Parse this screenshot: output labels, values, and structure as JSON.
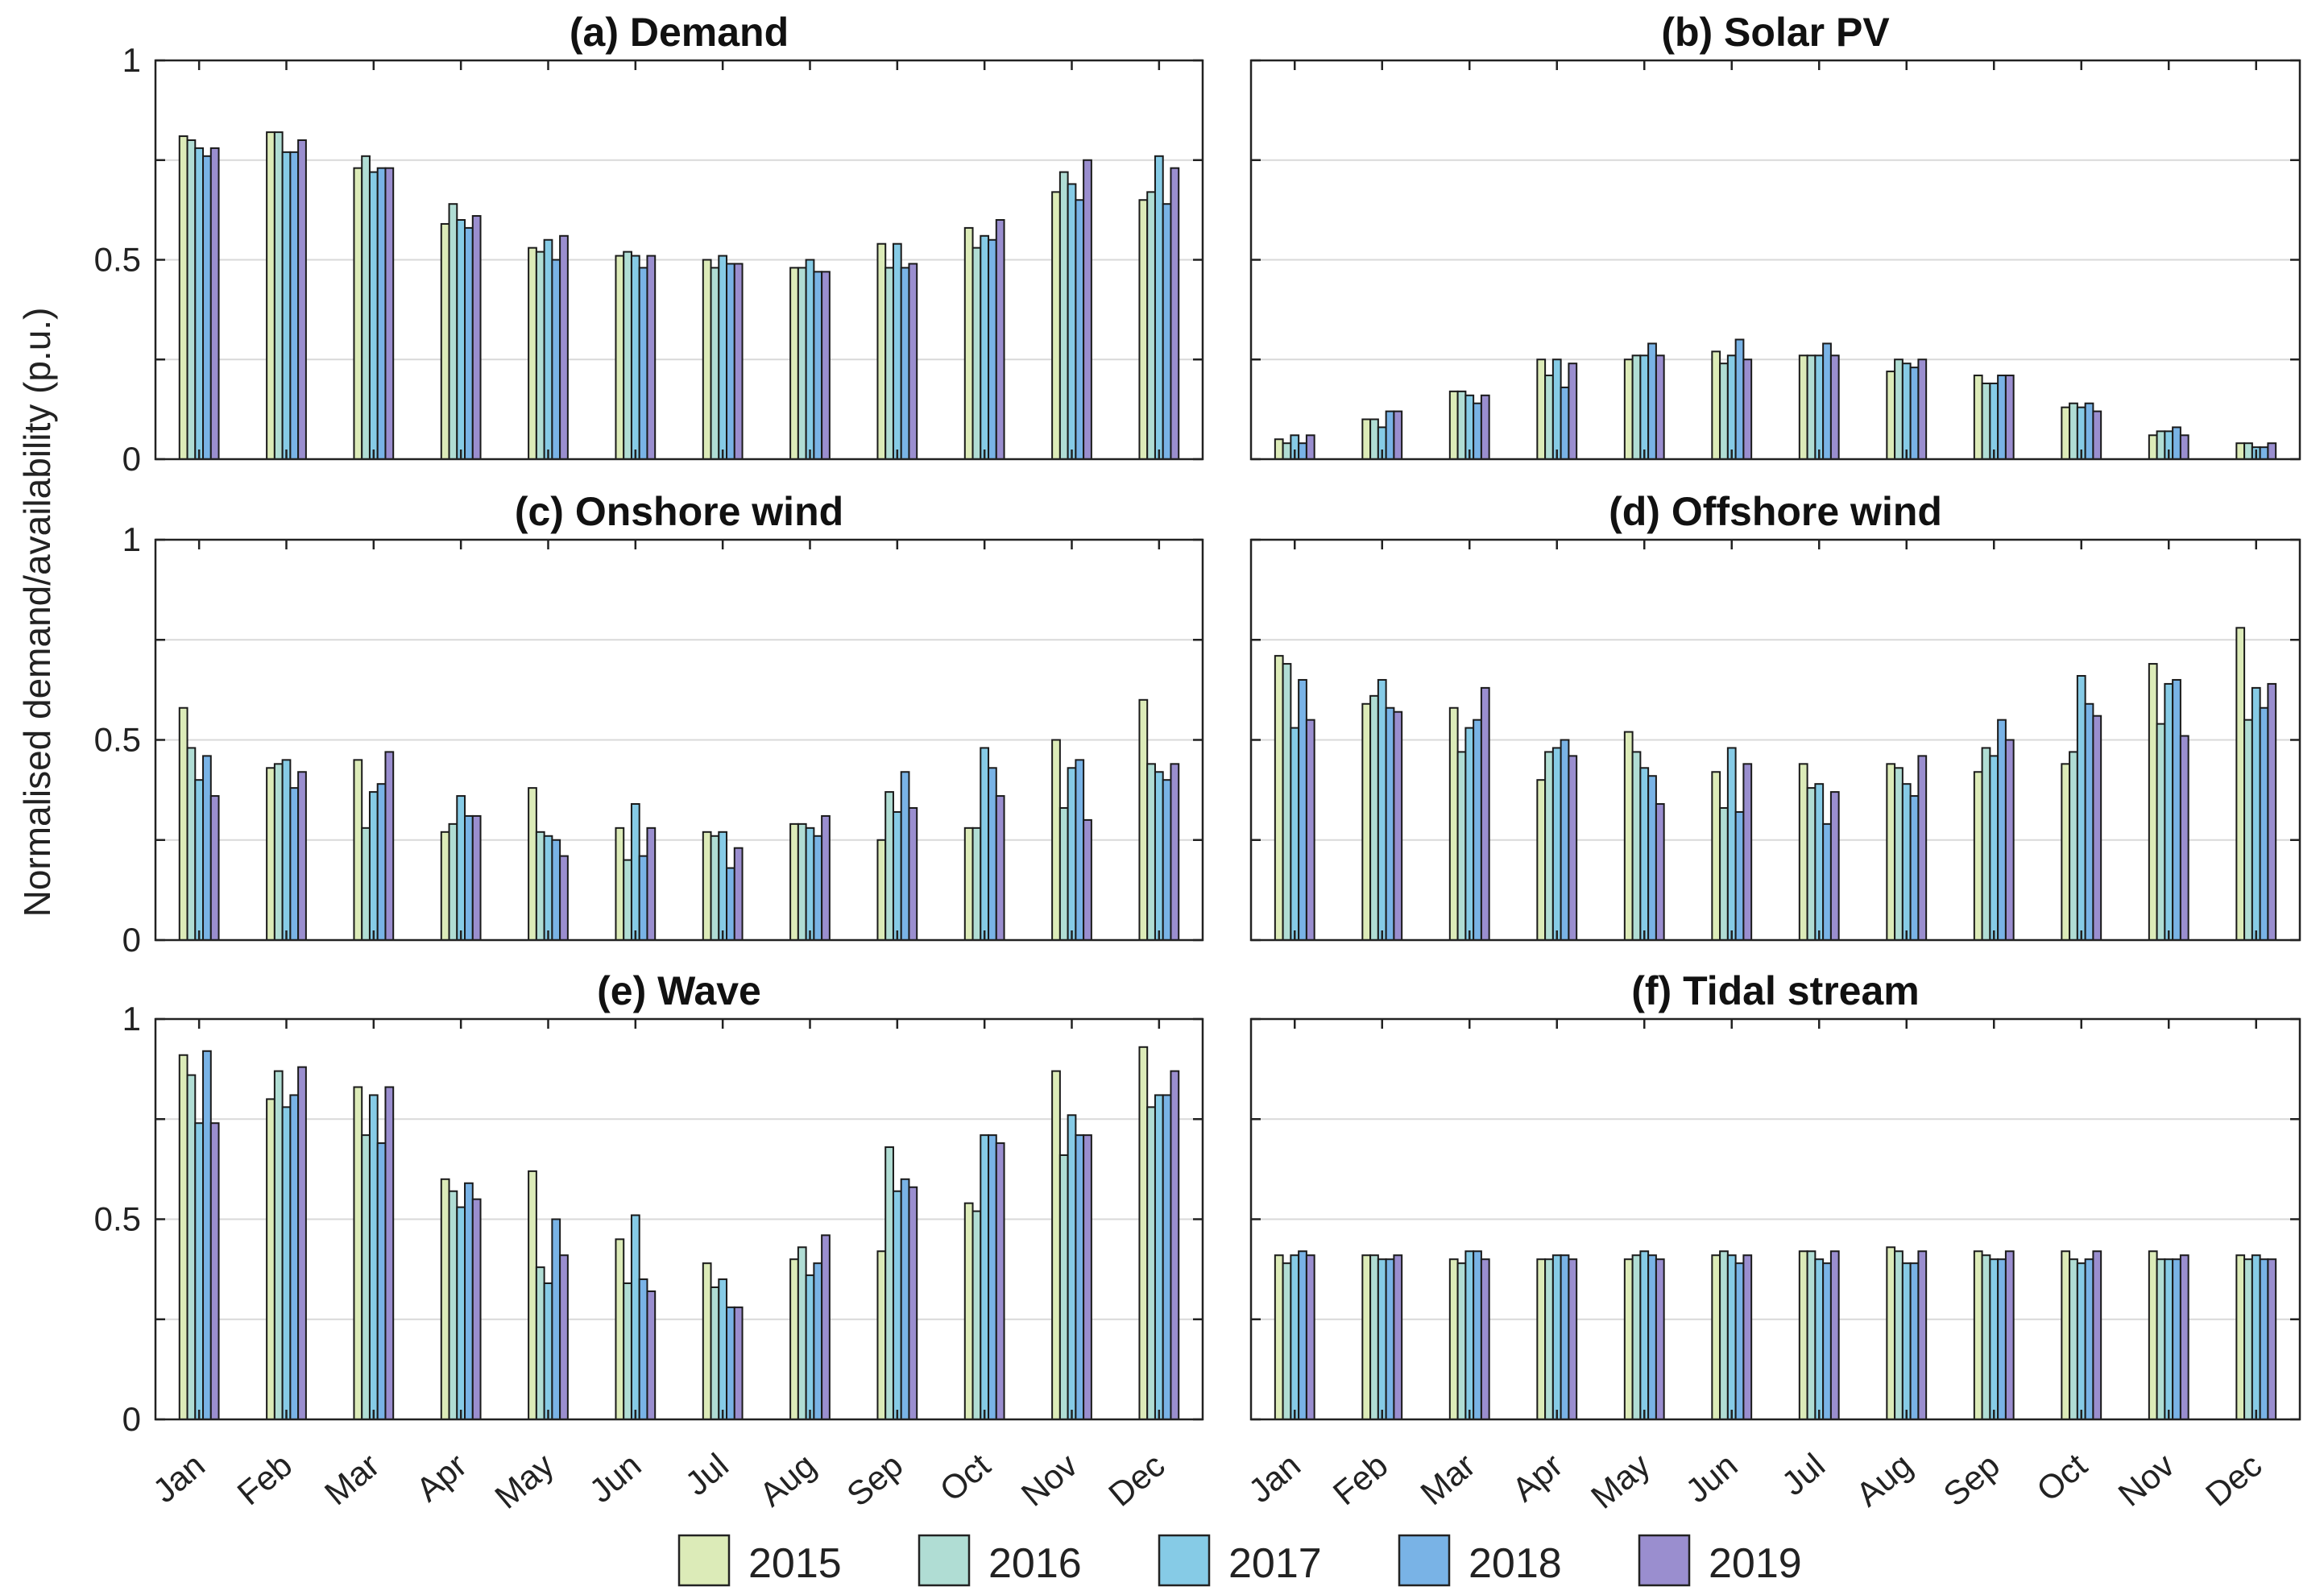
{
  "figure": {
    "ylabel": "Normalised demand/availability (p.u.)"
  },
  "colors": {
    "2015": "#dcebb8",
    "2016": "#b0ddd4",
    "2017": "#86cbe6",
    "2018": "#79b3e6",
    "2019": "#9a8ecf",
    "bar_edge": "#1a1a1a",
    "grid": "#d9d9d9"
  },
  "chart_data": [
    {
      "id": "a",
      "type": "bar",
      "title": "(a) Demand",
      "ylim": [
        0,
        1
      ],
      "yticks": [
        "0",
        "0.5",
        "1"
      ],
      "categories": [
        "Jan",
        "Feb",
        "Mar",
        "Apr",
        "May",
        "Jun",
        "Jul",
        "Aug",
        "Sep",
        "Oct",
        "Nov",
        "Dec"
      ],
      "series": [
        {
          "name": "2015",
          "values": [
            0.81,
            0.82,
            0.73,
            0.59,
            0.53,
            0.51,
            0.5,
            0.48,
            0.54,
            0.58,
            0.67,
            0.65
          ]
        },
        {
          "name": "2016",
          "values": [
            0.8,
            0.82,
            0.76,
            0.64,
            0.52,
            0.52,
            0.48,
            0.48,
            0.48,
            0.53,
            0.72,
            0.67
          ]
        },
        {
          "name": "2017",
          "values": [
            0.78,
            0.77,
            0.72,
            0.6,
            0.55,
            0.51,
            0.51,
            0.5,
            0.54,
            0.56,
            0.69,
            0.76
          ]
        },
        {
          "name": "2018",
          "values": [
            0.76,
            0.77,
            0.73,
            0.58,
            0.5,
            0.48,
            0.49,
            0.47,
            0.48,
            0.55,
            0.65,
            0.64
          ]
        },
        {
          "name": "2019",
          "values": [
            0.78,
            0.8,
            0.73,
            0.61,
            0.56,
            0.51,
            0.49,
            0.47,
            0.49,
            0.6,
            0.75,
            0.73
          ]
        }
      ]
    },
    {
      "id": "b",
      "type": "bar",
      "title": "(b) Solar PV",
      "ylim": [
        0,
        1
      ],
      "yticks": [
        "",
        "",
        ""
      ],
      "categories": [
        "Jan",
        "Feb",
        "Mar",
        "Apr",
        "May",
        "Jun",
        "Jul",
        "Aug",
        "Sep",
        "Oct",
        "Nov",
        "Dec"
      ],
      "series": [
        {
          "name": "2015",
          "values": [
            0.05,
            0.1,
            0.17,
            0.25,
            0.25,
            0.27,
            0.26,
            0.22,
            0.21,
            0.13,
            0.06,
            0.04
          ]
        },
        {
          "name": "2016",
          "values": [
            0.04,
            0.1,
            0.17,
            0.21,
            0.26,
            0.24,
            0.26,
            0.25,
            0.19,
            0.14,
            0.07,
            0.04
          ]
        },
        {
          "name": "2017",
          "values": [
            0.06,
            0.08,
            0.16,
            0.25,
            0.26,
            0.26,
            0.26,
            0.24,
            0.19,
            0.13,
            0.07,
            0.03
          ]
        },
        {
          "name": "2018",
          "values": [
            0.04,
            0.12,
            0.14,
            0.18,
            0.29,
            0.3,
            0.29,
            0.23,
            0.21,
            0.14,
            0.08,
            0.03
          ]
        },
        {
          "name": "2019",
          "values": [
            0.06,
            0.12,
            0.16,
            0.24,
            0.26,
            0.25,
            0.26,
            0.25,
            0.21,
            0.12,
            0.06,
            0.04
          ]
        }
      ]
    },
    {
      "id": "c",
      "type": "bar",
      "title": "(c) Onshore wind",
      "ylim": [
        0,
        1
      ],
      "yticks": [
        "0",
        "0.5",
        "1"
      ],
      "categories": [
        "Jan",
        "Feb",
        "Mar",
        "Apr",
        "May",
        "Jun",
        "Jul",
        "Aug",
        "Sep",
        "Oct",
        "Nov",
        "Dec"
      ],
      "series": [
        {
          "name": "2015",
          "values": [
            0.58,
            0.43,
            0.45,
            0.27,
            0.38,
            0.28,
            0.27,
            0.29,
            0.25,
            0.28,
            0.5,
            0.6
          ]
        },
        {
          "name": "2016",
          "values": [
            0.48,
            0.44,
            0.28,
            0.29,
            0.27,
            0.2,
            0.26,
            0.29,
            0.37,
            0.28,
            0.33,
            0.44
          ]
        },
        {
          "name": "2017",
          "values": [
            0.4,
            0.45,
            0.37,
            0.36,
            0.26,
            0.34,
            0.27,
            0.28,
            0.32,
            0.48,
            0.43,
            0.42
          ]
        },
        {
          "name": "2018",
          "values": [
            0.46,
            0.38,
            0.39,
            0.31,
            0.25,
            0.21,
            0.18,
            0.26,
            0.42,
            0.43,
            0.45,
            0.4
          ]
        },
        {
          "name": "2019",
          "values": [
            0.36,
            0.42,
            0.47,
            0.31,
            0.21,
            0.28,
            0.23,
            0.31,
            0.33,
            0.36,
            0.3,
            0.44
          ]
        }
      ]
    },
    {
      "id": "d",
      "type": "bar",
      "title": "(d) Offshore wind",
      "ylim": [
        0,
        1
      ],
      "yticks": [
        "",
        "",
        ""
      ],
      "categories": [
        "Jan",
        "Feb",
        "Mar",
        "Apr",
        "May",
        "Jun",
        "Jul",
        "Aug",
        "Sep",
        "Oct",
        "Nov",
        "Dec"
      ],
      "series": [
        {
          "name": "2015",
          "values": [
            0.71,
            0.59,
            0.58,
            0.4,
            0.52,
            0.42,
            0.44,
            0.44,
            0.42,
            0.44,
            0.69,
            0.78
          ]
        },
        {
          "name": "2016",
          "values": [
            0.69,
            0.61,
            0.47,
            0.47,
            0.47,
            0.33,
            0.38,
            0.43,
            0.48,
            0.47,
            0.54,
            0.55
          ]
        },
        {
          "name": "2017",
          "values": [
            0.53,
            0.65,
            0.53,
            0.48,
            0.43,
            0.48,
            0.39,
            0.39,
            0.46,
            0.66,
            0.64,
            0.63
          ]
        },
        {
          "name": "2018",
          "values": [
            0.65,
            0.58,
            0.55,
            0.5,
            0.41,
            0.32,
            0.29,
            0.36,
            0.55,
            0.59,
            0.65,
            0.58
          ]
        },
        {
          "name": "2019",
          "values": [
            0.55,
            0.57,
            0.63,
            0.46,
            0.34,
            0.44,
            0.37,
            0.46,
            0.5,
            0.56,
            0.51,
            0.64
          ]
        }
      ]
    },
    {
      "id": "e",
      "type": "bar",
      "title": "(e) Wave",
      "ylim": [
        0,
        1
      ],
      "yticks": [
        "0",
        "0.5",
        "1"
      ],
      "categories": [
        "Jan",
        "Feb",
        "Mar",
        "Apr",
        "May",
        "Jun",
        "Jul",
        "Aug",
        "Sep",
        "Oct",
        "Nov",
        "Dec"
      ],
      "series": [
        {
          "name": "2015",
          "values": [
            0.91,
            0.8,
            0.83,
            0.6,
            0.62,
            0.45,
            0.39,
            0.4,
            0.42,
            0.54,
            0.87,
            0.93
          ]
        },
        {
          "name": "2016",
          "values": [
            0.86,
            0.87,
            0.71,
            0.57,
            0.38,
            0.34,
            0.33,
            0.43,
            0.68,
            0.52,
            0.66,
            0.78
          ]
        },
        {
          "name": "2017",
          "values": [
            0.74,
            0.78,
            0.81,
            0.53,
            0.34,
            0.51,
            0.35,
            0.36,
            0.57,
            0.71,
            0.76,
            0.81
          ]
        },
        {
          "name": "2018",
          "values": [
            0.92,
            0.81,
            0.69,
            0.59,
            0.5,
            0.35,
            0.28,
            0.39,
            0.6,
            0.71,
            0.71,
            0.81
          ]
        },
        {
          "name": "2019",
          "values": [
            0.74,
            0.88,
            0.83,
            0.55,
            0.41,
            0.32,
            0.28,
            0.46,
            0.58,
            0.69,
            0.71,
            0.87
          ]
        }
      ]
    },
    {
      "id": "f",
      "type": "bar",
      "title": "(f) Tidal stream",
      "ylim": [
        0,
        1
      ],
      "yticks": [
        "",
        "",
        ""
      ],
      "categories": [
        "Jan",
        "Feb",
        "Mar",
        "Apr",
        "May",
        "Jun",
        "Jul",
        "Aug",
        "Sep",
        "Oct",
        "Nov",
        "Dec"
      ],
      "series": [
        {
          "name": "2015",
          "values": [
            0.41,
            0.41,
            0.4,
            0.4,
            0.4,
            0.41,
            0.42,
            0.43,
            0.42,
            0.42,
            0.42,
            0.41
          ]
        },
        {
          "name": "2016",
          "values": [
            0.39,
            0.41,
            0.39,
            0.4,
            0.41,
            0.42,
            0.42,
            0.42,
            0.41,
            0.4,
            0.4,
            0.4
          ]
        },
        {
          "name": "2017",
          "values": [
            0.41,
            0.4,
            0.42,
            0.41,
            0.42,
            0.41,
            0.4,
            0.39,
            0.4,
            0.39,
            0.4,
            0.41
          ]
        },
        {
          "name": "2018",
          "values": [
            0.42,
            0.4,
            0.42,
            0.41,
            0.41,
            0.39,
            0.39,
            0.39,
            0.4,
            0.4,
            0.4,
            0.4
          ]
        },
        {
          "name": "2019",
          "values": [
            0.41,
            0.41,
            0.4,
            0.4,
            0.4,
            0.41,
            0.42,
            0.42,
            0.42,
            0.42,
            0.41,
            0.4
          ]
        }
      ]
    }
  ],
  "legend": {
    "entries": [
      "2015",
      "2016",
      "2017",
      "2018",
      "2019"
    ]
  }
}
